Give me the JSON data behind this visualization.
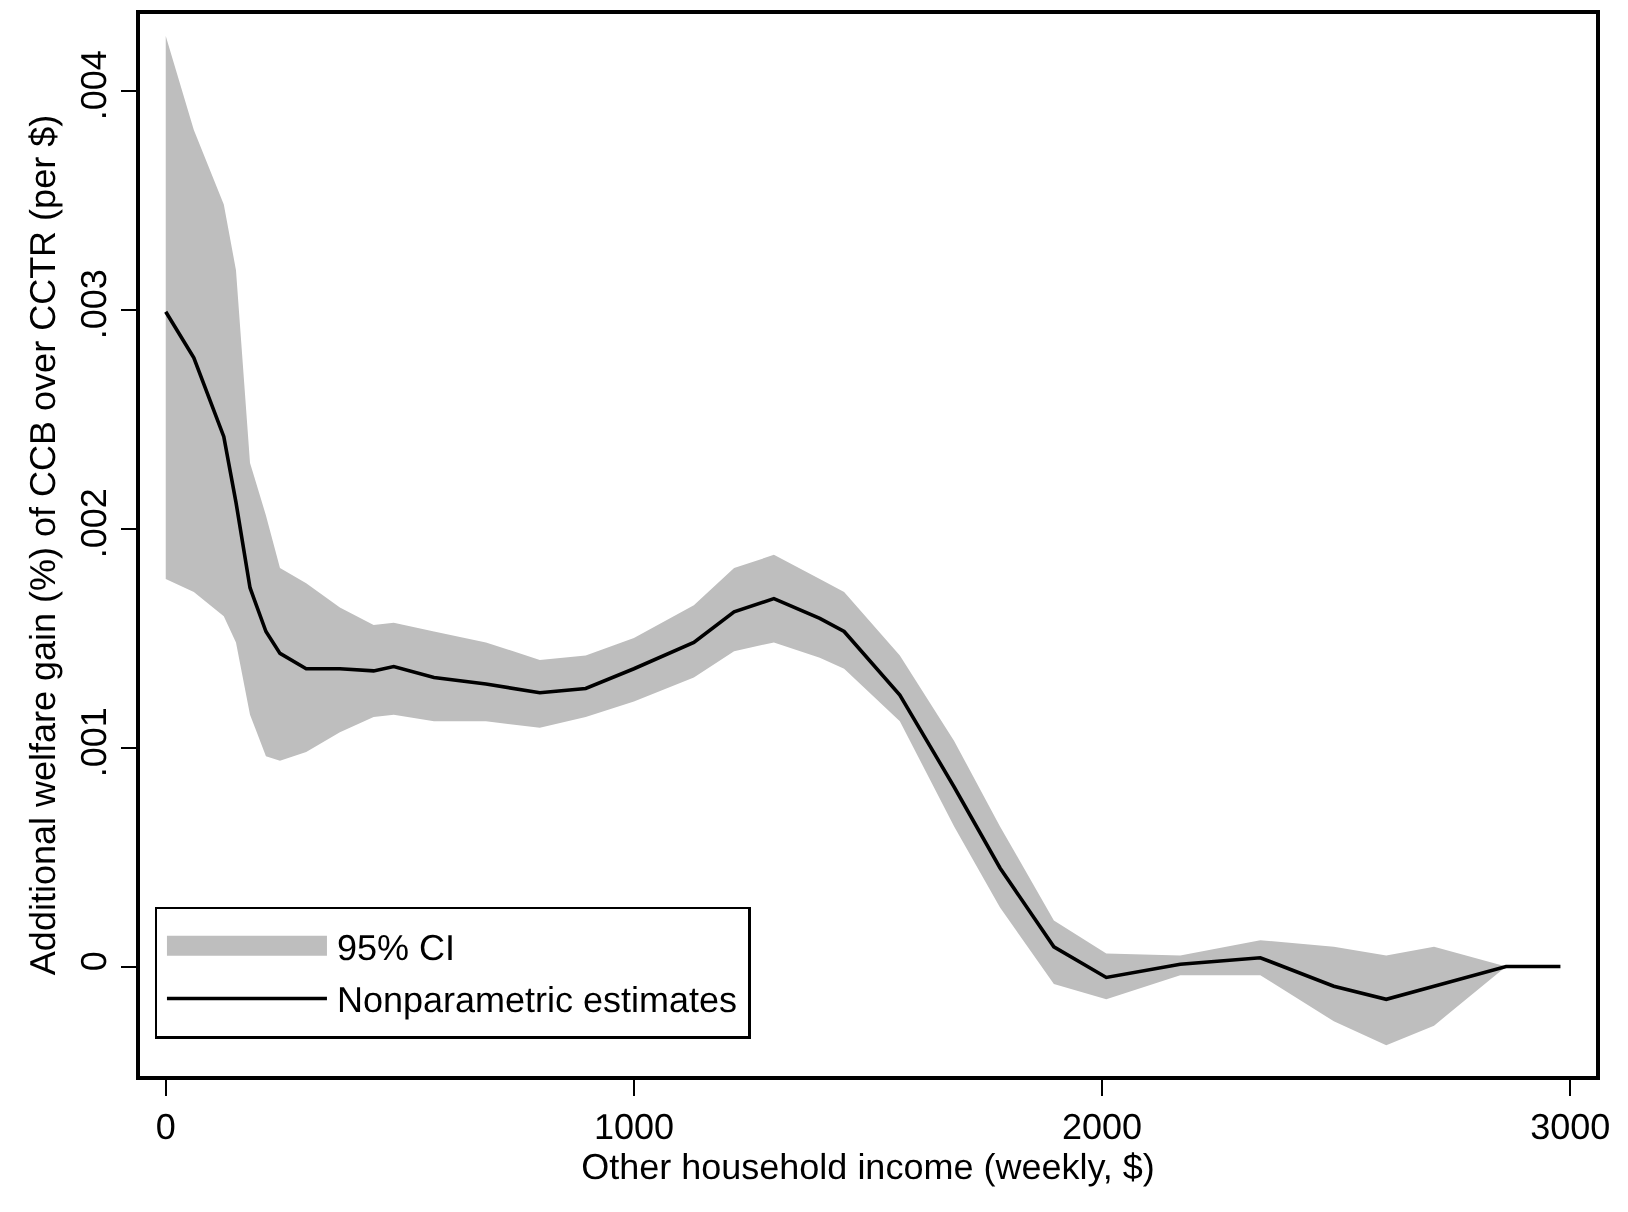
{
  "chart_data": {
    "type": "line",
    "xlabel": "Other household income (weekly, $)",
    "ylabel": "Additional welfare gain (%) of CCB over CCTR (per $)",
    "x": [
      0,
      60,
      124,
      150,
      180,
      214,
      244,
      300,
      372,
      444,
      487,
      573,
      684,
      799,
      897,
      1000,
      1128,
      1214,
      1299,
      1397,
      1449,
      1568,
      1684,
      1782,
      1897,
      2009,
      2167,
      2338,
      2495,
      2607,
      2709,
      2863,
      2979
    ],
    "series": [
      {
        "name": "Nonparametric estimates",
        "color": "#000000",
        "values": [
          0.00299,
          0.00278,
          0.00242,
          0.00212,
          0.00173,
          0.00153,
          0.00143,
          0.00136,
          0.00136,
          0.00135,
          0.00137,
          0.00132,
          0.00129,
          0.00125,
          0.00127,
          0.00136,
          0.00148,
          0.00162,
          0.00168,
          0.00159,
          0.00153,
          0.00124,
          0.00082,
          0.00045,
          9e-05,
          -5e-05,
          1e-05,
          4e-05,
          -9e-05,
          -0.00015,
          -9e-05,
          0,
          0
        ],
        "lower": [
          0.00177,
          0.00171,
          0.0016,
          0.00148,
          0.00115,
          0.00096,
          0.00094,
          0.00098,
          0.00107,
          0.00114,
          0.00115,
          0.00112,
          0.00112,
          0.00109,
          0.00114,
          0.00121,
          0.00132,
          0.00144,
          0.00148,
          0.00141,
          0.00136,
          0.00112,
          0.00064,
          0.00027,
          -8e-05,
          -0.00015,
          -4e-05,
          -4e-05,
          -0.00025,
          -0.00036,
          -0.00027,
          0,
          0
        ],
        "upper": [
          0.00425,
          0.00382,
          0.00348,
          0.00318,
          0.0023,
          0.00206,
          0.00182,
          0.00175,
          0.00164,
          0.00156,
          0.00157,
          0.00153,
          0.00148,
          0.0014,
          0.00142,
          0.0015,
          0.00165,
          0.00182,
          0.00188,
          0.00177,
          0.00171,
          0.00142,
          0.00103,
          0.00064,
          0.00021,
          6e-05,
          5e-05,
          0.00012,
          9e-05,
          5e-05,
          9e-05,
          0,
          0
        ]
      }
    ],
    "xlim": [
      -55,
      3055
    ],
    "xticks": [
      0,
      1000,
      2000,
      3000
    ],
    "ylim": [
      -0.0005,
      0.00435
    ],
    "yticks": [
      {
        "value": 0,
        "label": "0"
      },
      {
        "value": 0.001,
        "label": ".001"
      },
      {
        "value": 0.002,
        "label": ".002"
      },
      {
        "value": 0.003,
        "label": ".003"
      },
      {
        "value": 0.004,
        "label": ".004"
      }
    ],
    "annotations": [
      "95% CI"
    ],
    "legend": "bottom left",
    "marker": "none",
    "line_style": "solid"
  }
}
